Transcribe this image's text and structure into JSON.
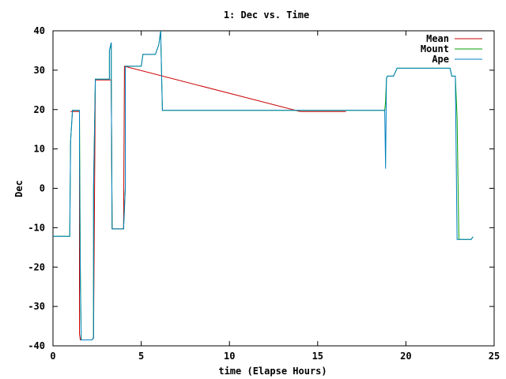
{
  "chart_data": {
    "type": "line",
    "title": "1: Dec vs. Time",
    "xlabel": "time (Elapse Hours)",
    "ylabel": "Dec",
    "xlim": [
      0,
      25
    ],
    "ylim": [
      -40,
      40
    ],
    "xticks": [
      0,
      5,
      10,
      15,
      20,
      25
    ],
    "yticks": [
      -40,
      -30,
      -20,
      -10,
      0,
      10,
      20,
      30,
      40
    ],
    "grid": false,
    "legend_position": "top-right",
    "series": [
      {
        "name": "Mean",
        "color": "#cc0000",
        "x": [
          1.0,
          1.05,
          1.1,
          1.5,
          1.5,
          1.55,
          1.55,
          2.2,
          2.3,
          2.4,
          3.3,
          3.35,
          3.4,
          4.0,
          4.05,
          14.0,
          16.6
        ],
        "y": [
          19.4,
          19.5,
          19.5,
          19.5,
          -37.0,
          -38.5,
          -38.5,
          -38.5,
          -38.0,
          27.5,
          27.5,
          -10.3,
          -10.3,
          -10.3,
          31.0,
          19.5,
          19.5
        ]
      },
      {
        "name": "Mount",
        "color": "#00a000",
        "x": [
          0.0,
          0.95,
          1.0,
          1.1,
          1.1,
          1.5,
          1.55,
          1.6,
          1.7,
          1.75,
          2.2,
          2.3,
          2.3,
          2.4,
          2.4,
          3.0,
          3.2,
          3.2,
          3.3,
          3.3,
          3.35,
          3.4,
          4.0,
          4.1,
          4.1,
          5.0,
          5.1,
          5.8,
          6.0,
          6.1,
          6.2,
          18.8,
          18.85,
          18.9,
          18.95,
          19.0,
          19.3,
          19.5,
          22.5,
          22.6,
          22.8,
          22.9,
          23.0,
          23.1,
          23.7,
          23.8
        ],
        "y": [
          -12.2,
          -12.2,
          12.0,
          19.5,
          19.8,
          19.8,
          -20.0,
          -38.5,
          -38.5,
          -38.5,
          -38.5,
          -38.0,
          0.0,
          27.7,
          27.7,
          27.7,
          27.7,
          35.0,
          37.0,
          28.0,
          -10.3,
          -10.3,
          -10.3,
          0.0,
          31.0,
          31.0,
          34.0,
          34.0,
          36.5,
          40.0,
          19.8,
          19.8,
          22.0,
          28.0,
          28.5,
          28.5,
          28.5,
          30.5,
          30.5,
          28.5,
          28.5,
          18.0,
          -13.0,
          -13.0,
          -13.0,
          -12.3
        ]
      },
      {
        "name": "Ape",
        "color": "#0080c0",
        "x": [
          0.0,
          0.95,
          1.0,
          1.1,
          1.1,
          1.5,
          1.5,
          1.55,
          1.6,
          1.7,
          1.75,
          2.2,
          2.3,
          2.3,
          2.4,
          2.4,
          3.0,
          3.2,
          3.2,
          3.3,
          3.3,
          3.35,
          3.4,
          4.0,
          4.1,
          4.1,
          5.0,
          5.1,
          5.8,
          6.0,
          6.1,
          6.2,
          18.8,
          18.85,
          18.9,
          18.95,
          19.0,
          19.3,
          19.5,
          22.5,
          22.6,
          22.8,
          22.9,
          23.0,
          23.1,
          23.7,
          23.8
        ],
        "y": [
          -12.2,
          -12.2,
          12.0,
          19.5,
          19.8,
          19.8,
          10.0,
          -24.0,
          -38.5,
          -38.5,
          -38.5,
          -38.5,
          -38.0,
          0.0,
          27.7,
          27.7,
          27.7,
          27.7,
          35.0,
          37.0,
          28.0,
          -10.3,
          -10.3,
          -10.3,
          0.0,
          31.0,
          31.0,
          34.0,
          34.0,
          36.5,
          40.0,
          19.8,
          19.8,
          5.0,
          28.0,
          28.5,
          28.5,
          28.5,
          30.5,
          30.5,
          28.5,
          28.5,
          -13.0,
          -13.0,
          -13.0,
          -13.0,
          -12.3
        ]
      }
    ]
  }
}
